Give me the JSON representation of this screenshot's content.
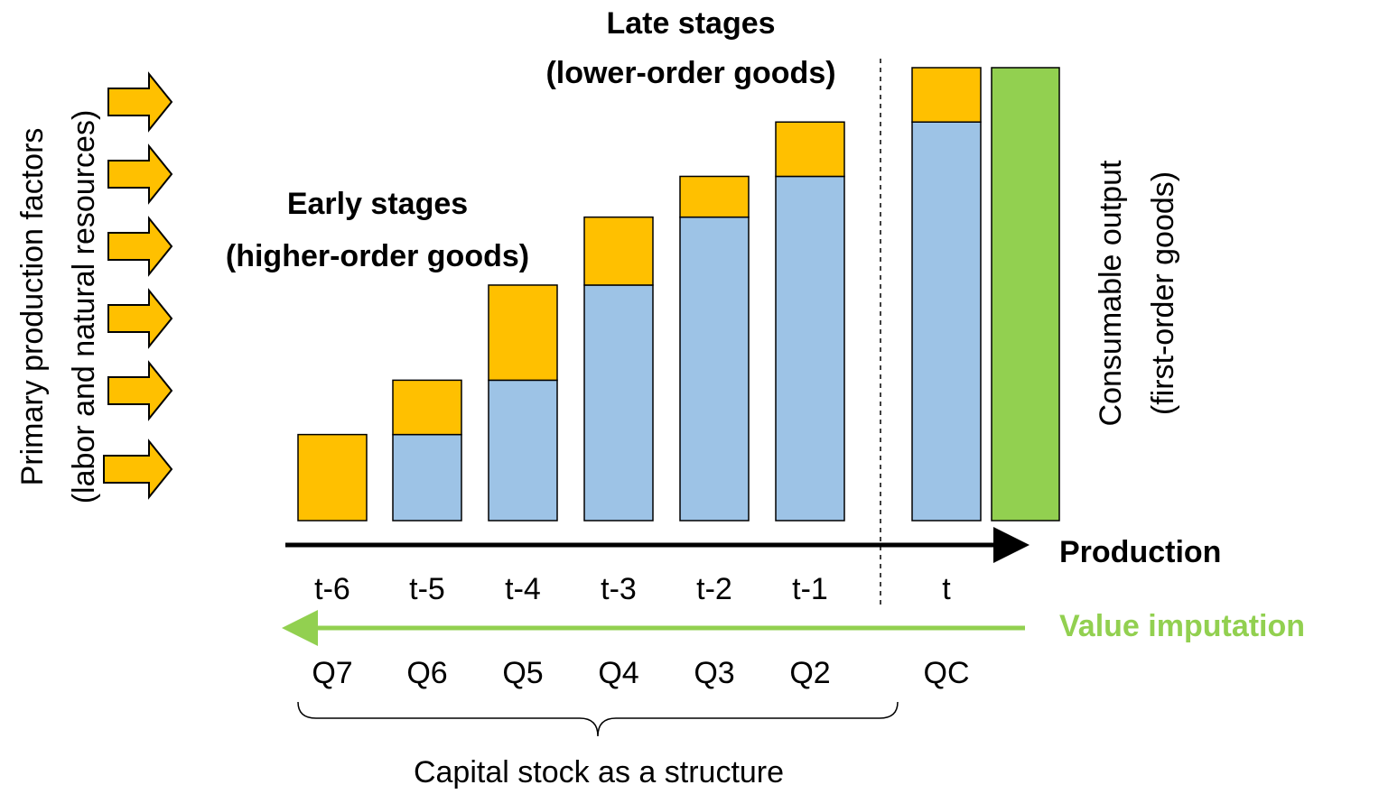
{
  "chart_data": {
    "type": "stacked-bar",
    "categories": [
      "t-6",
      "t-5",
      "t-4",
      "t-3",
      "t-2",
      "t-1",
      "t"
    ],
    "quantity_labels": [
      "Q7",
      "Q6",
      "Q5",
      "Q4",
      "Q3",
      "Q2",
      "QC"
    ],
    "series": [
      {
        "color": "#9dc3e6",
        "values": [
          0,
          19,
          31,
          52,
          67,
          76,
          88
        ]
      },
      {
        "color": "#ffc000",
        "values": [
          19,
          12,
          21,
          15,
          9,
          12,
          12
        ]
      }
    ],
    "output": {
      "value": 100,
      "color": "#92d050"
    },
    "late_stages": [
      "Late stages",
      "(lower-order goods)"
    ],
    "early_stages": [
      "Early stages",
      "(higher-order goods)"
    ],
    "left_label": [
      "Primary production factors",
      "(labor and natural resources)"
    ],
    "right_label": [
      "Consumable output",
      "(first-order goods)"
    ],
    "production_label": "Production",
    "imputation_label": "Value imputation",
    "brace_label": "Capital stock as a structure"
  }
}
